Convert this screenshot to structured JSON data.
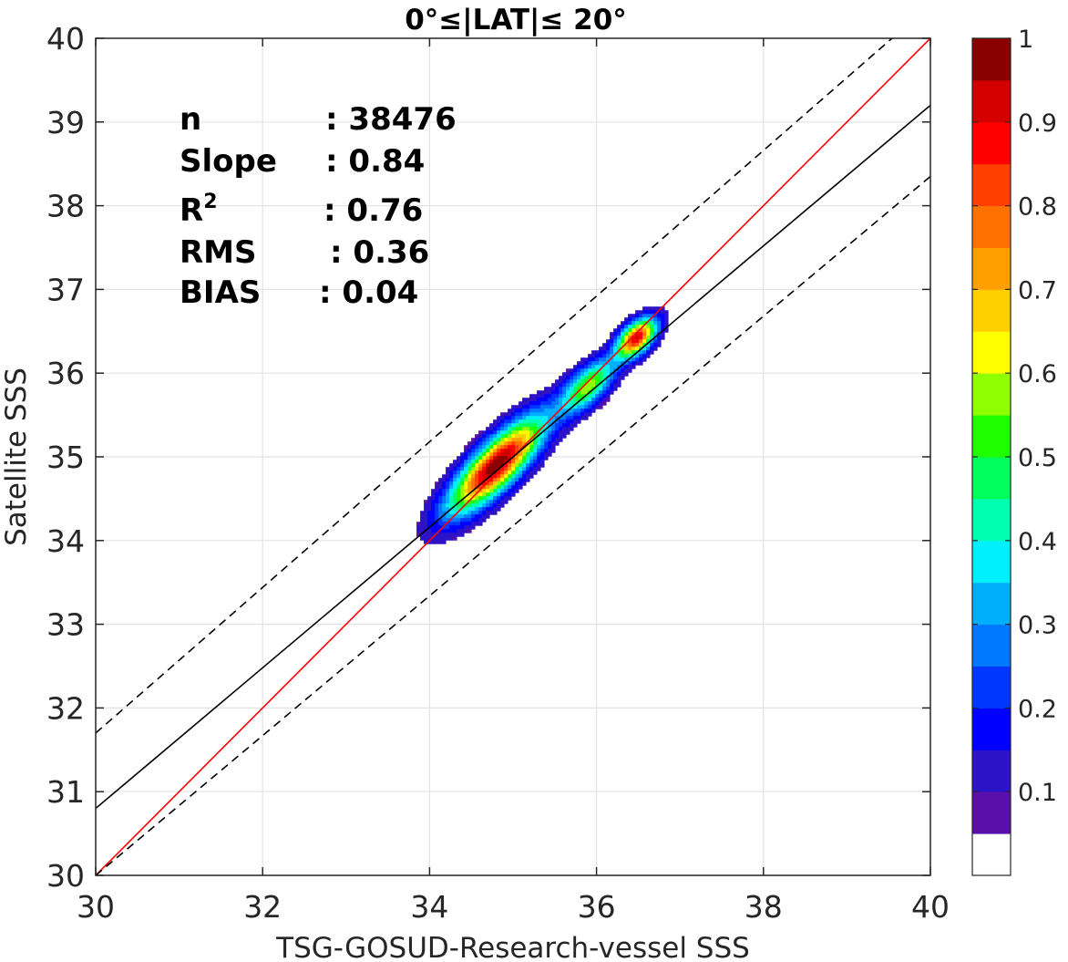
{
  "chart_data": {
    "type": "contour",
    "title": "0°≤|LAT|≤ 20°",
    "xlabel": "TSG-GOSUD-Research-vessel SSS",
    "ylabel": "Satellite SSS",
    "xlim": [
      30,
      40
    ],
    "ylim": [
      30,
      40
    ],
    "x_ticks": [
      "30",
      "32",
      "34",
      "36",
      "38",
      "40"
    ],
    "y_ticks": [
      "30",
      "31",
      "32",
      "33",
      "34",
      "35",
      "36",
      "37",
      "38",
      "39",
      "40"
    ],
    "grid": true,
    "stats": [
      {
        "label": "n",
        "value": ": 38476"
      },
      {
        "label": "Slope",
        "value": ": 0.84"
      },
      {
        "label": "R",
        "sup": "2",
        "value": ": 0.76"
      },
      {
        "label": "RMS",
        "value": ": 0.36"
      },
      {
        "label": "BIAS",
        "value": ": 0.04"
      }
    ],
    "lines": [
      {
        "style": "identity",
        "color": "#ff0000",
        "x": [
          30,
          40
        ],
        "y": [
          30,
          40
        ]
      },
      {
        "style": "regression",
        "color": "#000000",
        "x": [
          30,
          40
        ],
        "y": [
          30.8,
          39.2
        ]
      },
      {
        "style": "dashed",
        "color": "#000000",
        "x": [
          30,
          40
        ],
        "y": [
          31.7,
          40.4
        ]
      },
      {
        "style": "dashed",
        "color": "#000000",
        "x": [
          30,
          40
        ],
        "y": [
          30,
          38.35
        ]
      }
    ],
    "density_peaks": [
      {
        "x": 34.8,
        "y": 34.9,
        "value": 1.0
      },
      {
        "x": 35.9,
        "y": 35.85,
        "value": 0.55
      },
      {
        "x": 36.48,
        "y": 36.42,
        "value": 0.9
      }
    ],
    "colorbar": {
      "ticks": [
        "0.1",
        "0.2",
        "0.3",
        "0.4",
        "0.5",
        "0.6",
        "0.7",
        "0.8",
        "0.9",
        "1"
      ],
      "colors": [
        "#ffffff",
        "#5a0fa8",
        "#2d13c8",
        "#0000ff",
        "#0037ff",
        "#0078ff",
        "#00b0ff",
        "#00f0ff",
        "#00ffb0",
        "#00ff5a",
        "#20ff00",
        "#90ff00",
        "#ffff00",
        "#ffd000",
        "#ffa000",
        "#ff7000",
        "#ff4000",
        "#ff0000",
        "#d40000",
        "#8b0000"
      ]
    }
  }
}
